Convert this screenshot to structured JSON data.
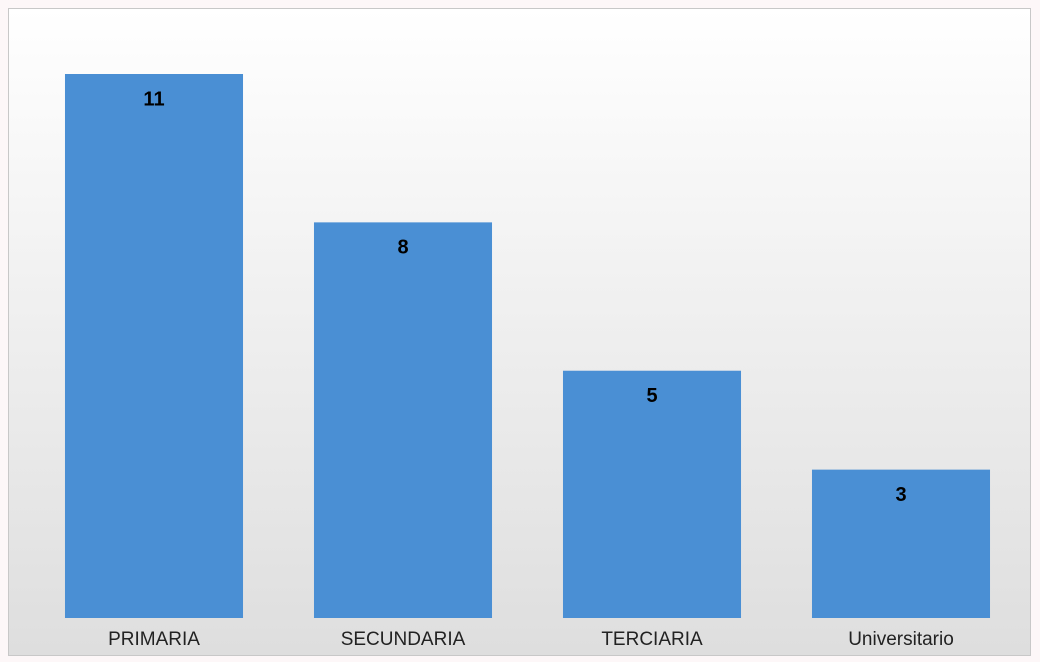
{
  "chart_data": {
    "type": "bar",
    "categories": [
      "PRIMARIA",
      "SECUNDARIA",
      "TERCIARIA",
      "Universitario"
    ],
    "values": [
      11,
      8,
      5,
      3
    ],
    "color": "#4a8fd4"
  }
}
